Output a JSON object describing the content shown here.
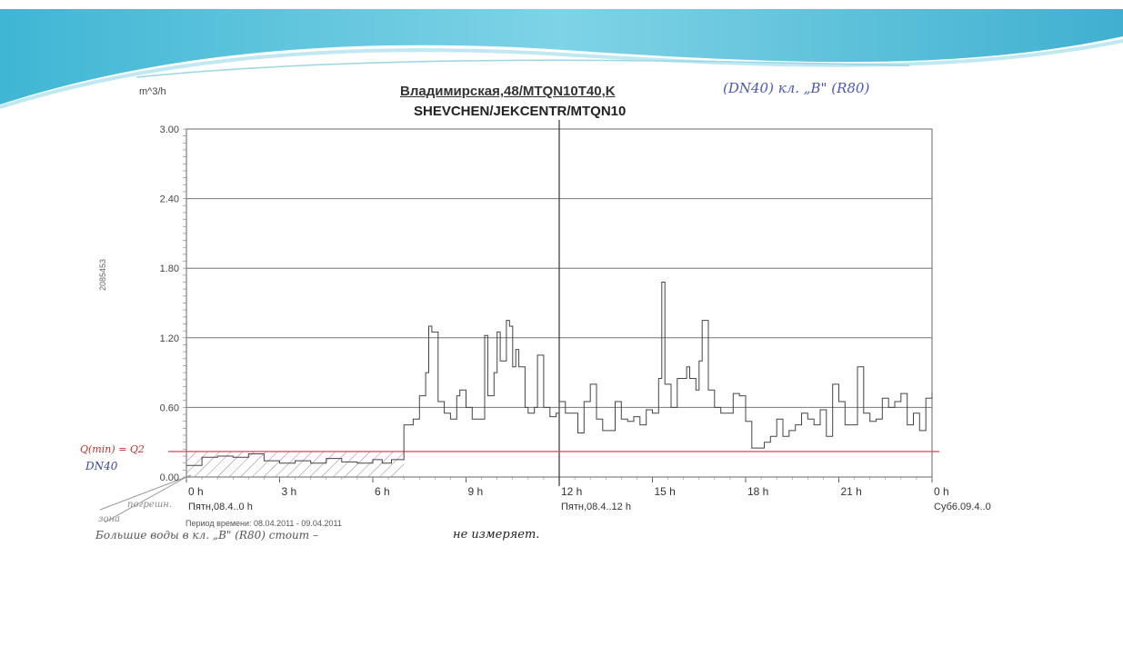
{
  "slide": {
    "title_line1": "Владимирская,48/MTQN10T40,K",
    "title_line2": "SHEVCHEN/JEKCENTR/MTQN10",
    "handwritten_top": "(DN40) кл. „B\" (R80)",
    "unit": "m^3/h",
    "vertical_id": "2085453",
    "handwritten_threshold": "Q(min) = Q2",
    "handwritten_dn": "DN40",
    "handwritten_left_a": "погрешн.",
    "handwritten_left_b": "зона",
    "period_text": "Период времени: 08.04.2011 - 09.04.2011",
    "bottom_note": "Большие воды в кл. „B\" (R80) стоит –",
    "bottom_note_end": "не измеряет.",
    "colors": {
      "line": "#444444",
      "threshold": "#e05060",
      "banner": "#4fc3dc",
      "accent_blue": "#3a44a8"
    }
  },
  "chart_data": {
    "type": "line",
    "step": true,
    "title": "Владимирская,48/MTQN10T40,K",
    "subtitle": "SHEVCHEN/JEKCENTR/MTQN10",
    "ylabel": "m^3/h",
    "xlim": [
      0,
      24
    ],
    "ylim": [
      0,
      3.0
    ],
    "y_ticks": [
      "0.00",
      "0.60",
      "1.20",
      "1.80",
      "2.40",
      "3.00"
    ],
    "y_tick_values": [
      0,
      0.6,
      1.2,
      1.8,
      2.4,
      3.0
    ],
    "x_ticks": [
      "0 h",
      "3 h",
      "6 h",
      "9 h",
      "12 h",
      "15 h",
      "18 h",
      "21 h",
      "0 h"
    ],
    "x_tick_values": [
      0,
      3,
      6,
      9,
      12,
      15,
      18,
      21,
      24
    ],
    "date_labels": [
      {
        "x": 0,
        "text": "Пятн,08.4..0 h"
      },
      {
        "x": 12,
        "text": "Пятн,08.4..12 h"
      },
      {
        "x": 24,
        "text": "Суб6.09.4..0"
      }
    ],
    "cursor_x": 12,
    "threshold": {
      "value": 0.22,
      "label": "Q(min) = Q2"
    },
    "grid": true,
    "series": [
      {
        "points": [
          [
            0,
            0.1
          ],
          [
            0.5,
            0.17
          ],
          [
            1,
            0.18
          ],
          [
            1.5,
            0.17
          ],
          [
            2,
            0.2
          ],
          [
            2.5,
            0.14
          ],
          [
            3,
            0.12
          ],
          [
            3.5,
            0.14
          ],
          [
            4,
            0.12
          ],
          [
            4.5,
            0.16
          ],
          [
            5,
            0.13
          ],
          [
            5.5,
            0.12
          ],
          [
            6,
            0.15
          ],
          [
            6.3,
            0.12
          ],
          [
            6.6,
            0.15
          ],
          [
            7,
            0.45
          ],
          [
            7.3,
            0.5
          ],
          [
            7.5,
            0.7
          ],
          [
            7.7,
            0.9
          ],
          [
            7.8,
            1.3
          ],
          [
            7.9,
            1.25
          ],
          [
            8.1,
            0.65
          ],
          [
            8.3,
            0.55
          ],
          [
            8.5,
            0.5
          ],
          [
            8.7,
            0.7
          ],
          [
            8.8,
            0.75
          ],
          [
            9,
            0.6
          ],
          [
            9.2,
            0.5
          ],
          [
            9.4,
            0.5
          ],
          [
            9.6,
            1.22
          ],
          [
            9.7,
            0.7
          ],
          [
            9.9,
            0.9
          ],
          [
            10,
            1.25
          ],
          [
            10.1,
            1.0
          ],
          [
            10.3,
            1.35
          ],
          [
            10.4,
            1.3
          ],
          [
            10.5,
            0.95
          ],
          [
            10.6,
            1.1
          ],
          [
            10.7,
            0.95
          ],
          [
            10.9,
            0.6
          ],
          [
            11,
            0.55
          ],
          [
            11.2,
            0.6
          ],
          [
            11.3,
            1.05
          ],
          [
            11.5,
            0.6
          ],
          [
            11.7,
            0.52
          ],
          [
            11.9,
            0.55
          ],
          [
            12,
            0.65
          ],
          [
            12.2,
            0.55
          ],
          [
            12.4,
            0.55
          ],
          [
            12.6,
            0.38
          ],
          [
            12.8,
            0.65
          ],
          [
            13,
            0.8
          ],
          [
            13.2,
            0.5
          ],
          [
            13.4,
            0.4
          ],
          [
            13.6,
            0.4
          ],
          [
            13.8,
            0.65
          ],
          [
            14,
            0.5
          ],
          [
            14.2,
            0.48
          ],
          [
            14.4,
            0.52
          ],
          [
            14.6,
            0.45
          ],
          [
            14.8,
            0.58
          ],
          [
            15,
            0.55
          ],
          [
            15.2,
            0.85
          ],
          [
            15.3,
            1.68
          ],
          [
            15.4,
            0.8
          ],
          [
            15.6,
            0.6
          ],
          [
            15.8,
            0.85
          ],
          [
            16,
            0.85
          ],
          [
            16.1,
            0.95
          ],
          [
            16.2,
            0.85
          ],
          [
            16.4,
            0.75
          ],
          [
            16.5,
            1.0
          ],
          [
            16.6,
            1.35
          ],
          [
            16.8,
            0.75
          ],
          [
            17,
            0.6
          ],
          [
            17.2,
            0.55
          ],
          [
            17.4,
            0.55
          ],
          [
            17.6,
            0.72
          ],
          [
            17.8,
            0.7
          ],
          [
            18,
            0.48
          ],
          [
            18.2,
            0.25
          ],
          [
            18.4,
            0.25
          ],
          [
            18.6,
            0.3
          ],
          [
            18.8,
            0.35
          ],
          [
            19,
            0.5
          ],
          [
            19.2,
            0.35
          ],
          [
            19.4,
            0.4
          ],
          [
            19.6,
            0.45
          ],
          [
            19.8,
            0.55
          ],
          [
            20,
            0.5
          ],
          [
            20.2,
            0.45
          ],
          [
            20.4,
            0.58
          ],
          [
            20.6,
            0.35
          ],
          [
            20.8,
            0.8
          ],
          [
            21,
            0.65
          ],
          [
            21.2,
            0.45
          ],
          [
            21.4,
            0.45
          ],
          [
            21.6,
            0.95
          ],
          [
            21.8,
            0.55
          ],
          [
            22,
            0.48
          ],
          [
            22.2,
            0.5
          ],
          [
            22.4,
            0.68
          ],
          [
            22.6,
            0.6
          ],
          [
            22.8,
            0.65
          ],
          [
            23,
            0.72
          ],
          [
            23.2,
            0.45
          ],
          [
            23.4,
            0.55
          ],
          [
            23.6,
            0.4
          ],
          [
            23.8,
            0.68
          ],
          [
            24,
            0.73
          ]
        ]
      }
    ]
  }
}
